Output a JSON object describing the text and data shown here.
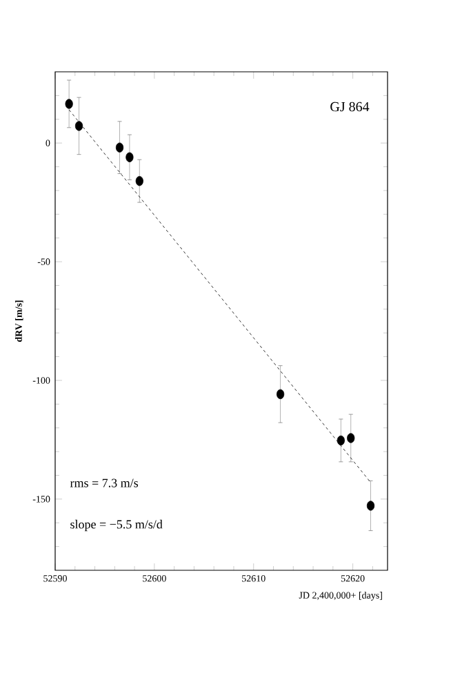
{
  "chart_data": {
    "type": "scatter",
    "xlabel": "JD 2,400,000+ [days]",
    "ylabel": "dRV [m/s]",
    "annotations": [
      "GJ 864",
      "rms = 7.3 m/s",
      "slope = −5.5 m/s/d"
    ],
    "xlim": [
      52590,
      52623.5
    ],
    "ylim": [
      -180,
      30
    ],
    "xticks": [
      52590,
      {
        "value": 52592,
        "label": null
      },
      {
        "value": 52594,
        "label": null
      },
      {
        "value": 52596,
        "label": null
      },
      {
        "value": 52598,
        "label": null
      },
      52600,
      {
        "value": 52602,
        "label": null
      },
      {
        "value": 52604,
        "label": null
      },
      {
        "value": 52606,
        "label": null
      },
      {
        "value": 52608,
        "label": null
      },
      52610,
      {
        "value": 52612,
        "label": null
      },
      {
        "value": 52614,
        "label": null
      },
      {
        "value": 52616,
        "label": null
      },
      {
        "value": 52618,
        "label": null
      },
      52620,
      {
        "value": 52622,
        "label": null
      }
    ],
    "yticks": [
      {
        "value": -170,
        "label": null
      },
      {
        "value": -160,
        "label": null
      },
      -150,
      {
        "value": -140,
        "label": null
      },
      {
        "value": -130,
        "label": null
      },
      {
        "value": -120,
        "label": null
      },
      {
        "value": -110,
        "label": null
      },
      -100,
      {
        "value": -90,
        "label": null
      },
      {
        "value": -80,
        "label": null
      },
      {
        "value": -70,
        "label": null
      },
      {
        "value": -60,
        "label": null
      },
      -50,
      {
        "value": -40,
        "label": null
      },
      {
        "value": -30,
        "label": null
      },
      {
        "value": -20,
        "label": null
      },
      {
        "value": -10,
        "label": null
      },
      0,
      {
        "value": 10,
        "label": null
      },
      {
        "value": 20,
        "label": null
      }
    ],
    "grid": false,
    "series": [
      {
        "color": "#000000",
        "marker": "circle",
        "x": [
          52591.4,
          52592.4,
          52596.5,
          52597.5,
          52598.5,
          52612.7,
          52618.8,
          52619.8,
          52621.8
        ],
        "values": [
          16.5,
          7.2,
          -1.9,
          -6,
          -16,
          -105.8,
          -125.3,
          -124.3,
          -152.8
        ],
        "errors": [
          10,
          12,
          11,
          9.5,
          9,
          12,
          9,
          10,
          10.5
        ]
      },
      {
        "type": "line",
        "color": "#000000",
        "line_style": "dashed",
        "marker": "none",
        "x": [
          52591.4,
          52621.8
        ],
        "values": [
          14,
          -143
        ]
      }
    ]
  }
}
